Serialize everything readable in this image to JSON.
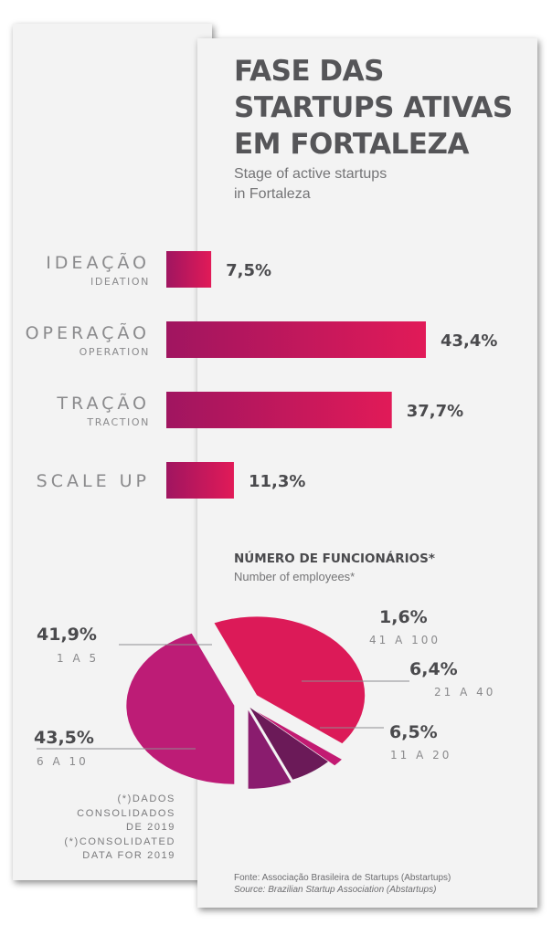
{
  "title": [
    "FASE DAS",
    "STARTUPS ATIVAS",
    "EM FORTALEZA"
  ],
  "subtitle": [
    "Stage of active startups",
    "in Fortaleza"
  ],
  "chart_data": [
    {
      "type": "bar",
      "orientation": "horizontal",
      "title": "FASE DAS STARTUPS ATIVAS EM FORTALEZA",
      "subtitle": "Stage of active startups in Fortaleza",
      "categories": [
        "IDEAÇÃO",
        "OPERAÇÃO",
        "TRAÇÃO",
        "SCALE UP"
      ],
      "categories_en": [
        "IDEATION",
        "OPERATION",
        "TRACTION",
        ""
      ],
      "values": [
        7.5,
        43.4,
        37.7,
        11.3
      ],
      "value_labels": [
        "7,5%",
        "43,4%",
        "37,7%",
        "11,3%"
      ],
      "grid": false,
      "colors": {
        "start": "#a01560",
        "end": "#e11a58"
      }
    },
    {
      "type": "pie",
      "title": "NÚMERO DE FUNCIONÁRIOS*",
      "subtitle": "Number of employees*",
      "slices": [
        {
          "label": "1 A 5",
          "value": 41.9,
          "value_label": "41,9%",
          "color": "#dc1a58"
        },
        {
          "label": "41 A 100",
          "value": 1.6,
          "value_label": "1,6%",
          "color": "#c21a72"
        },
        {
          "label": "21 A 40",
          "value": 6.4,
          "value_label": "6,4%",
          "color": "#6b1a58"
        },
        {
          "label": "11 A 20",
          "value": 6.5,
          "value_label": "6,5%",
          "color": "#8a1c6e"
        },
        {
          "label": "6 A 10",
          "value": 43.5,
          "value_label": "43,5%",
          "color": "#bd1c76"
        }
      ]
    }
  ],
  "footnote": [
    "(*)DADOS",
    "CONSOLIDADOS",
    "DE 2019",
    "(*)CONSOLIDATED",
    "DATA FOR 2019"
  ],
  "source": {
    "pt": "Fonte: Associação Brasileira de Startups (Abstartups)",
    "en": "Source: Brazilian Startup Association (Abstartups)"
  }
}
